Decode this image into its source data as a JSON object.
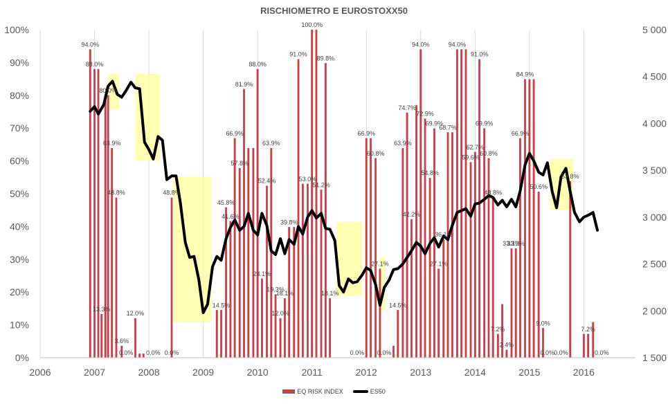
{
  "chart_data": {
    "type": "bar",
    "title": "RISCHIOMETRO E EUROSTOXX50",
    "x_ticks": [
      "2006",
      "2007",
      "2008",
      "2009",
      "2010",
      "2011",
      "2012",
      "2013",
      "2014",
      "2015",
      "2016"
    ],
    "xlim": [
      2006.0,
      2016.95
    ],
    "y_left": {
      "ticks": [
        "0%",
        "10%",
        "20%",
        "30%",
        "40%",
        "50%",
        "60%",
        "70%",
        "80%",
        "90%",
        "100%"
      ],
      "lim": [
        0,
        100
      ]
    },
    "y_right": {
      "ticks": [
        "1 500",
        "2 000",
        "2 500",
        "3 000",
        "3 500",
        "4 000",
        "4 500",
        "5 000"
      ],
      "lim": [
        1500,
        5000
      ]
    },
    "grid": "vertical",
    "legend_position": "bottom",
    "colors": {
      "bars": "#e8372c",
      "bar_edge": "#3a6fc9",
      "line": "#000000",
      "highlight": "#ffff99"
    },
    "series": [
      {
        "name": "EQ RISK INDEX",
        "kind": "bar",
        "points": [
          {
            "x": 2006.92,
            "y": 94.0,
            "label": "94.0%"
          },
          {
            "x": 2007.0,
            "y": 88.0,
            "label": "88.0%"
          },
          {
            "x": 2007.07,
            "y": 88.0
          },
          {
            "x": 2007.13,
            "y": 13.3,
            "label": "13.3%"
          },
          {
            "x": 2007.2,
            "y": 80.0
          },
          {
            "x": 2007.25,
            "y": 80.0,
            "label": "80.0%"
          },
          {
            "x": 2007.32,
            "y": 63.9,
            "label": "63.9%"
          },
          {
            "x": 2007.4,
            "y": 48.8,
            "label": "48.8%"
          },
          {
            "x": 2007.5,
            "y": 3.6,
            "label": "3.6%"
          },
          {
            "x": 2007.58,
            "y": 0.0,
            "label": "0.0%"
          },
          {
            "x": 2007.75,
            "y": 12.0,
            "label": "12.0%"
          },
          {
            "x": 2007.83,
            "y": 1.2
          },
          {
            "x": 2007.9,
            "y": 1.2
          },
          {
            "x": 2008.08,
            "y": 0.0,
            "label": "0.0%"
          },
          {
            "x": 2008.42,
            "y": 0.0,
            "label": "0.0%"
          },
          {
            "x": 2008.42,
            "y": 48.8,
            "label": "48.8%"
          },
          {
            "x": 2009.25,
            "y": 14.5
          },
          {
            "x": 2009.33,
            "y": 14.5,
            "label": "14.5%"
          },
          {
            "x": 2009.42,
            "y": 45.8,
            "label": "45.8%"
          },
          {
            "x": 2009.5,
            "y": 41.6,
            "label": "41.6%"
          },
          {
            "x": 2009.58,
            "y": 66.9,
            "label": "66.9%"
          },
          {
            "x": 2009.67,
            "y": 57.8,
            "label": "57.8%"
          },
          {
            "x": 2009.75,
            "y": 81.9,
            "label": "81.9%"
          },
          {
            "x": 2009.83,
            "y": 63.9
          },
          {
            "x": 2009.92,
            "y": 63.9
          },
          {
            "x": 2010.0,
            "y": 88.0,
            "label": "88.0%"
          },
          {
            "x": 2010.08,
            "y": 24.1,
            "label": "24.1%"
          },
          {
            "x": 2010.17,
            "y": 52.4,
            "label": "52.4%"
          },
          {
            "x": 2010.25,
            "y": 63.9,
            "label": "63.9%"
          },
          {
            "x": 2010.33,
            "y": 19.3,
            "label": "19.3%"
          },
          {
            "x": 2010.42,
            "y": 12.0,
            "label": "12.0%"
          },
          {
            "x": 2010.5,
            "y": 18.1,
            "label": "18.1%"
          },
          {
            "x": 2010.58,
            "y": 39.8,
            "label": "39.8%"
          },
          {
            "x": 2010.67,
            "y": 39.8
          },
          {
            "x": 2010.75,
            "y": 91.0,
            "label": "91.0%"
          },
          {
            "x": 2010.83,
            "y": 53.0
          },
          {
            "x": 2010.92,
            "y": 53.0,
            "label": "53.0%"
          },
          {
            "x": 2011.0,
            "y": 100.0,
            "label": "100.0%"
          },
          {
            "x": 2011.08,
            "y": 100.0
          },
          {
            "x": 2011.17,
            "y": 51.2,
            "label": "51.2%"
          },
          {
            "x": 2011.25,
            "y": 89.8,
            "label": "89.8%"
          },
          {
            "x": 2011.33,
            "y": 18.1,
            "label": "18.1%"
          },
          {
            "x": 2011.83,
            "y": 0.0,
            "label": "0.0%"
          },
          {
            "x": 2012.0,
            "y": 66.9,
            "label": "66.9%"
          },
          {
            "x": 2012.08,
            "y": 66.9
          },
          {
            "x": 2012.17,
            "y": 60.8,
            "label": "60.8%"
          },
          {
            "x": 2012.25,
            "y": 27.1,
            "label": "27.1%"
          },
          {
            "x": 2012.33,
            "y": 0.0,
            "label": "0.0%"
          },
          {
            "x": 2012.5,
            "y": 3.6
          },
          {
            "x": 2012.58,
            "y": 14.5,
            "label": "14.5%"
          },
          {
            "x": 2012.67,
            "y": 63.9,
            "label": "63.9%"
          },
          {
            "x": 2012.75,
            "y": 74.7,
            "label": "74.7%"
          },
          {
            "x": 2012.83,
            "y": 42.2,
            "label": "42.2%"
          },
          {
            "x": 2012.92,
            "y": 77.0
          },
          {
            "x": 2013.0,
            "y": 94.0,
            "label": "94.0%"
          },
          {
            "x": 2013.08,
            "y": 72.9,
            "label": "72.9%"
          },
          {
            "x": 2013.17,
            "y": 54.8,
            "label": "54.8%"
          },
          {
            "x": 2013.25,
            "y": 69.9,
            "label": "69.9%"
          },
          {
            "x": 2013.33,
            "y": 27.1,
            "label": "27.1%"
          },
          {
            "x": 2013.42,
            "y": 36.1,
            "label": "36.1%"
          },
          {
            "x": 2013.5,
            "y": 68.7,
            "label": "68.7%"
          },
          {
            "x": 2013.58,
            "y": 68.7
          },
          {
            "x": 2013.67,
            "y": 94.0,
            "label": "94.0%"
          },
          {
            "x": 2013.75,
            "y": 94.0
          },
          {
            "x": 2013.83,
            "y": 94.0
          },
          {
            "x": 2013.92,
            "y": 59.6,
            "label": "59.6%"
          },
          {
            "x": 2014.0,
            "y": 62.7,
            "label": "62.7%"
          },
          {
            "x": 2014.08,
            "y": 91.0,
            "label": "91.0%"
          },
          {
            "x": 2014.17,
            "y": 69.9,
            "label": "69.9%"
          },
          {
            "x": 2014.25,
            "y": 60.8,
            "label": "60.8%"
          },
          {
            "x": 2014.33,
            "y": 48.8,
            "label": "48.8%"
          },
          {
            "x": 2014.42,
            "y": 7.2,
            "label": "7.2%"
          },
          {
            "x": 2014.5,
            "y": 16.3
          },
          {
            "x": 2014.58,
            "y": 2.4,
            "label": "2.4%"
          },
          {
            "x": 2014.67,
            "y": 33.3,
            "label": "33.3%"
          },
          {
            "x": 2014.75,
            "y": 33.3,
            "label": "33.3%"
          },
          {
            "x": 2014.83,
            "y": 66.9,
            "label": "66.9%"
          },
          {
            "x": 2014.92,
            "y": 84.9,
            "label": "84.9%"
          },
          {
            "x": 2015.0,
            "y": 84.9
          },
          {
            "x": 2015.08,
            "y": 84.9
          },
          {
            "x": 2015.17,
            "y": 50.6,
            "label": "50.6%"
          },
          {
            "x": 2015.25,
            "y": 9.0,
            "label": "9.0%"
          },
          {
            "x": 2015.33,
            "y": 0.0,
            "label": "0.0%"
          },
          {
            "x": 2015.58,
            "y": 0.0,
            "label": "0.0%"
          },
          {
            "x": 2015.75,
            "y": 53.8,
            "label": "53.8%"
          },
          {
            "x": 2016.0,
            "y": 7.2
          },
          {
            "x": 2016.08,
            "y": 7.2,
            "label": "7.2%"
          },
          {
            "x": 2016.17,
            "y": 10.8
          },
          {
            "x": 2016.33,
            "y": 0.0,
            "label": "0.0%"
          }
        ]
      },
      {
        "name": "ES50",
        "kind": "line",
        "axis": "right",
        "points": [
          [
            2006.92,
            4130
          ],
          [
            2007.0,
            4180
          ],
          [
            2007.07,
            4100
          ],
          [
            2007.17,
            4200
          ],
          [
            2007.25,
            4400
          ],
          [
            2007.33,
            4450
          ],
          [
            2007.42,
            4310
          ],
          [
            2007.5,
            4280
          ],
          [
            2007.58,
            4350
          ],
          [
            2007.67,
            4440
          ],
          [
            2007.75,
            4380
          ],
          [
            2007.83,
            4370
          ],
          [
            2007.92,
            3800
          ],
          [
            2008.0,
            3720
          ],
          [
            2008.08,
            3620
          ],
          [
            2008.17,
            3860
          ],
          [
            2008.25,
            3820
          ],
          [
            2008.33,
            3400
          ],
          [
            2008.42,
            3440
          ],
          [
            2008.5,
            3440
          ],
          [
            2008.58,
            3150
          ],
          [
            2008.67,
            2730
          ],
          [
            2008.75,
            2570
          ],
          [
            2008.83,
            2580
          ],
          [
            2008.92,
            2330
          ],
          [
            2009.0,
            1980
          ],
          [
            2009.08,
            2070
          ],
          [
            2009.17,
            2470
          ],
          [
            2009.25,
            2580
          ],
          [
            2009.33,
            2540
          ],
          [
            2009.42,
            2770
          ],
          [
            2009.5,
            2890
          ],
          [
            2009.58,
            2970
          ],
          [
            2009.67,
            2860
          ],
          [
            2009.75,
            2900
          ],
          [
            2009.83,
            3040
          ],
          [
            2009.92,
            2860
          ],
          [
            2010.0,
            2810
          ],
          [
            2010.08,
            3040
          ],
          [
            2010.17,
            2910
          ],
          [
            2010.25,
            2640
          ],
          [
            2010.33,
            2600
          ],
          [
            2010.42,
            2770
          ],
          [
            2010.5,
            2610
          ],
          [
            2010.58,
            2760
          ],
          [
            2010.67,
            2710
          ],
          [
            2010.75,
            2900
          ],
          [
            2010.83,
            2820
          ],
          [
            2010.92,
            3000
          ],
          [
            2011.0,
            3070
          ],
          [
            2011.08,
            2990
          ],
          [
            2011.17,
            3040
          ],
          [
            2011.25,
            2880
          ],
          [
            2011.33,
            2870
          ],
          [
            2011.42,
            2750
          ],
          [
            2011.5,
            2270
          ],
          [
            2011.58,
            2200
          ],
          [
            2011.67,
            2340
          ],
          [
            2011.75,
            2300
          ],
          [
            2011.83,
            2310
          ],
          [
            2011.92,
            2380
          ],
          [
            2012.0,
            2460
          ],
          [
            2012.08,
            2430
          ],
          [
            2012.17,
            2280
          ],
          [
            2012.25,
            2060
          ],
          [
            2012.33,
            2250
          ],
          [
            2012.42,
            2330
          ],
          [
            2012.5,
            2440
          ],
          [
            2012.58,
            2450
          ],
          [
            2012.67,
            2500
          ],
          [
            2012.75,
            2570
          ],
          [
            2012.83,
            2640
          ],
          [
            2012.92,
            2730
          ],
          [
            2013.0,
            2690
          ],
          [
            2013.08,
            2610
          ],
          [
            2013.17,
            2720
          ],
          [
            2013.25,
            2780
          ],
          [
            2013.33,
            2680
          ],
          [
            2013.42,
            2800
          ],
          [
            2013.5,
            2760
          ],
          [
            2013.58,
            2910
          ],
          [
            2013.67,
            3050
          ],
          [
            2013.75,
            3070
          ],
          [
            2013.83,
            3090
          ],
          [
            2013.92,
            3010
          ],
          [
            2014.0,
            3140
          ],
          [
            2014.08,
            3150
          ],
          [
            2014.17,
            3190
          ],
          [
            2014.25,
            3230
          ],
          [
            2014.33,
            3210
          ],
          [
            2014.42,
            3130
          ],
          [
            2014.5,
            3180
          ],
          [
            2014.58,
            3110
          ],
          [
            2014.67,
            3190
          ],
          [
            2014.75,
            3110
          ],
          [
            2014.83,
            3280
          ],
          [
            2014.92,
            3560
          ],
          [
            2015.0,
            3680
          ],
          [
            2015.08,
            3600
          ],
          [
            2015.17,
            3480
          ],
          [
            2015.25,
            3450
          ],
          [
            2015.33,
            3580
          ],
          [
            2015.42,
            3270
          ],
          [
            2015.5,
            3100
          ],
          [
            2015.58,
            3430
          ],
          [
            2015.67,
            3520
          ],
          [
            2015.75,
            3270
          ],
          [
            2015.83,
            3050
          ],
          [
            2015.92,
            2950
          ],
          [
            2016.0,
            3000
          ],
          [
            2016.08,
            3020
          ],
          [
            2016.17,
            3050
          ],
          [
            2016.25,
            2860
          ]
        ]
      }
    ],
    "highlight_ranges": [
      {
        "x0": 2007.25,
        "x1": 2007.45,
        "y0": 4150,
        "y1": 4530
      },
      {
        "x0": 2007.75,
        "x1": 2008.2,
        "y0": 3600,
        "y1": 4530
      },
      {
        "x0": 2008.45,
        "x1": 2009.15,
        "y0": 1880,
        "y1": 3430
      },
      {
        "x0": 2011.45,
        "x1": 2011.92,
        "y0": 2160,
        "y1": 2950
      },
      {
        "x0": 2012.25,
        "x1": 2012.35,
        "y0": 2000,
        "y1": 2570
      },
      {
        "x0": 2015.38,
        "x1": 2015.8,
        "y0": 3080,
        "y1": 3620
      }
    ]
  }
}
